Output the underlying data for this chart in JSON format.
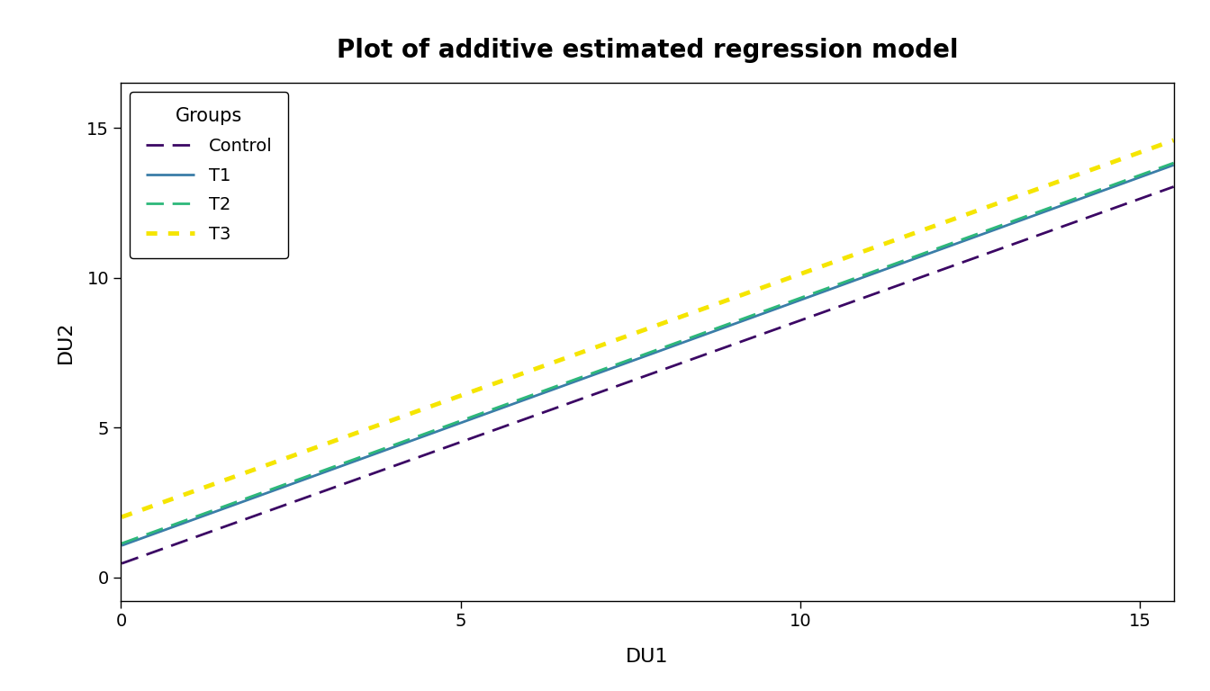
{
  "title": "Plot of additive estimated regression model",
  "xlabel": "DU1",
  "ylabel": "DU2",
  "xlim": [
    0,
    15.5
  ],
  "ylim": [
    -0.8,
    16.5
  ],
  "yticks": [
    0,
    5,
    10,
    15
  ],
  "xticks": [
    0,
    5,
    10,
    15
  ],
  "legend_title": "Groups",
  "lines": [
    {
      "label": "Control",
      "color": "#3B0764",
      "linestyle": "dashed",
      "linewidth": 2.0,
      "intercept": 0.45,
      "slope": 0.812
    },
    {
      "label": "T1",
      "color": "#3A7DA8",
      "linestyle": "solid",
      "linewidth": 2.0,
      "intercept": 1.05,
      "slope": 0.82
    },
    {
      "label": "T2",
      "color": "#2DB87A",
      "linestyle": "dashed",
      "linewidth": 2.0,
      "intercept": 1.12,
      "slope": 0.82
    },
    {
      "label": "T3",
      "color": "#F5E500",
      "linestyle": "dotted",
      "linewidth": 3.5,
      "intercept": 2.0,
      "slope": 0.812
    }
  ],
  "background_color": "#FFFFFF",
  "title_fontsize": 20,
  "axis_label_fontsize": 16,
  "tick_fontsize": 14,
  "legend_fontsize": 14,
  "legend_title_fontsize": 15
}
